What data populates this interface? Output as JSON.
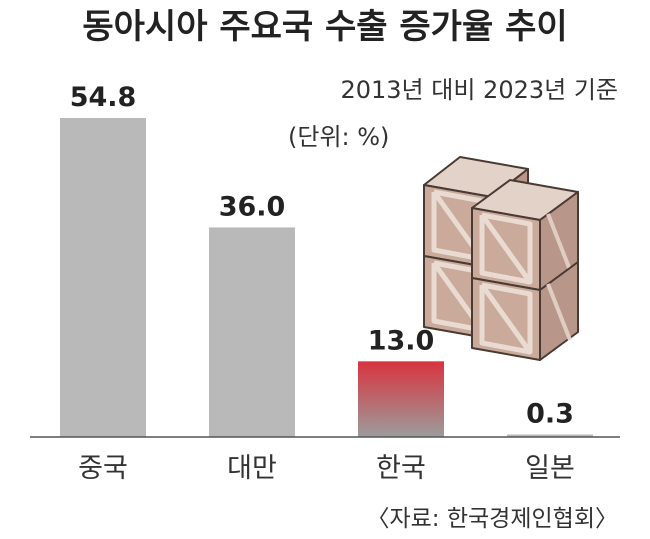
{
  "header": {
    "title": "동아시아 주요국 수출 증가율 추이",
    "subtitle": "2013년 대비 2023년 기준",
    "unit": "(단위: %)"
  },
  "source": "〈자료: 한국경제인협회〉",
  "colors": {
    "bar_default": "#b9b9b9",
    "bar_highlight_top": "#d8343f",
    "bar_highlight_bottom": "#9c9c9c",
    "axis": "#555555",
    "box_face": "#c9aa9b",
    "box_frame": "#e9dbd1",
    "box_edge": "#4a3a34"
  },
  "chart_data": {
    "type": "bar",
    "categories": [
      "중국",
      "대만",
      "한국",
      "일본"
    ],
    "values": [
      54.8,
      36.0,
      13.0,
      0.3
    ],
    "value_labels": [
      "54.8",
      "36.0",
      "13.0",
      "0.3"
    ],
    "highlight_index": 2,
    "title": "동아시아 주요국 수출 증가율 추이",
    "ylim": [
      0,
      54.8
    ],
    "grid": false,
    "legend": "none"
  },
  "illustration": {
    "icon": "wooden-crates-icon"
  }
}
